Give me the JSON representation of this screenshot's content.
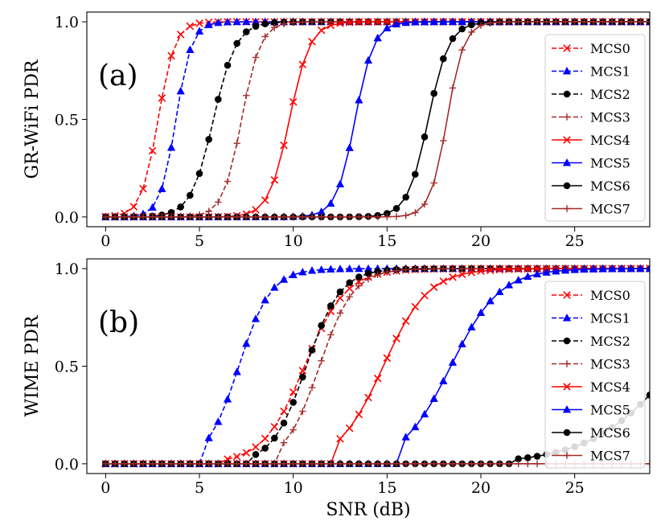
{
  "chart_data": [
    {
      "type": "line",
      "panel_label": "(a)",
      "ylabel": "GR-WiFi PDR",
      "xlabel": "",
      "xlim": [
        -1,
        29
      ],
      "ylim": [
        -0.05,
        1.05
      ],
      "xticks": [
        0,
        5,
        10,
        15,
        20,
        25
      ],
      "xtick_labels": [
        "0",
        "5",
        "10",
        "15",
        "20",
        "25"
      ],
      "yticks": [
        0.0,
        0.5,
        1.0
      ],
      "ytick_labels": [
        "0.0",
        "0.5",
        "1.0"
      ],
      "x_start": 0,
      "x_end": 29,
      "x_step": 0.5,
      "legend_position": "right",
      "series": [
        {
          "name": "MCS0",
          "color": "#ff0000",
          "line": "dashed",
          "marker": "x",
          "center": 2.8,
          "width": 0.45
        },
        {
          "name": "MCS1",
          "color": "#0000ff",
          "line": "dashed",
          "marker": "triangle",
          "center": 3.75,
          "width": 0.42
        },
        {
          "name": "MCS2",
          "color": "#000000",
          "line": "dashed",
          "marker": "circle",
          "center": 5.75,
          "width": 0.6
        },
        {
          "name": "MCS3",
          "color": "#a52a2a",
          "line": "dashed",
          "marker": "plus",
          "center": 7.25,
          "width": 0.5
        },
        {
          "name": "MCS4",
          "color": "#ff0000",
          "line": "solid",
          "marker": "x",
          "center": 9.8,
          "width": 0.55
        },
        {
          "name": "MCS5",
          "color": "#0000ff",
          "line": "solid",
          "marker": "triangle",
          "center": 13.3,
          "width": 0.5
        },
        {
          "name": "MCS6",
          "color": "#000000",
          "line": "solid",
          "marker": "circle",
          "center": 17.2,
          "width": 0.55
        },
        {
          "name": "MCS7",
          "color": "#a52a2a",
          "line": "solid",
          "marker": "plus",
          "center": 18.2,
          "width": 0.45
        }
      ]
    },
    {
      "type": "line",
      "panel_label": "(b)",
      "ylabel": "WIME PDR",
      "xlabel": "SNR (dB)",
      "xlim": [
        -1,
        29
      ],
      "ylim": [
        -0.05,
        1.05
      ],
      "xticks": [
        0,
        5,
        10,
        15,
        20,
        25
      ],
      "xtick_labels": [
        "0",
        "5",
        "10",
        "15",
        "20",
        "25"
      ],
      "yticks": [
        0.0,
        0.5,
        1.0
      ],
      "ytick_labels": [
        "0.0",
        "0.5",
        "1.0"
      ],
      "x_start": 0,
      "x_end": 29,
      "x_step": 0.5,
      "legend_position": "right",
      "series": [
        {
          "name": "MCS0",
          "color": "#ff0000",
          "line": "dashed",
          "marker": "x",
          "center": 10.6,
          "width": 1.1,
          "threshold": 6.5
        },
        {
          "name": "MCS1",
          "color": "#0000ff",
          "line": "dashed",
          "marker": "triangle",
          "center": 7.1,
          "width": 0.85,
          "threshold": 5.5
        },
        {
          "name": "MCS2",
          "color": "#000000",
          "line": "dashed",
          "marker": "circle",
          "center": 10.7,
          "width": 0.9,
          "threshold": 8
        },
        {
          "name": "MCS3",
          "color": "#a52a2a",
          "line": "dashed",
          "marker": "plus",
          "center": 11.4,
          "width": 0.9,
          "threshold": 9.5
        },
        {
          "name": "MCS4",
          "color": "#ff0000",
          "line": "solid",
          "marker": "x",
          "center": 14.8,
          "width": 1.2,
          "threshold": 12.5
        },
        {
          "name": "MCS5",
          "color": "#0000ff",
          "line": "solid",
          "marker": "triangle",
          "center": 18.4,
          "width": 1.3,
          "threshold": 16
        },
        {
          "name": "MCS6",
          "color": "#000000",
          "line": "solid",
          "marker": "circle",
          "center": 30.4,
          "width": 2.3,
          "threshold": 22
        },
        {
          "name": "MCS7",
          "color": "#a52a2a",
          "line": "solid",
          "marker": "plus",
          "center": 40.0,
          "width": 1.0,
          "threshold": 99
        }
      ]
    }
  ]
}
